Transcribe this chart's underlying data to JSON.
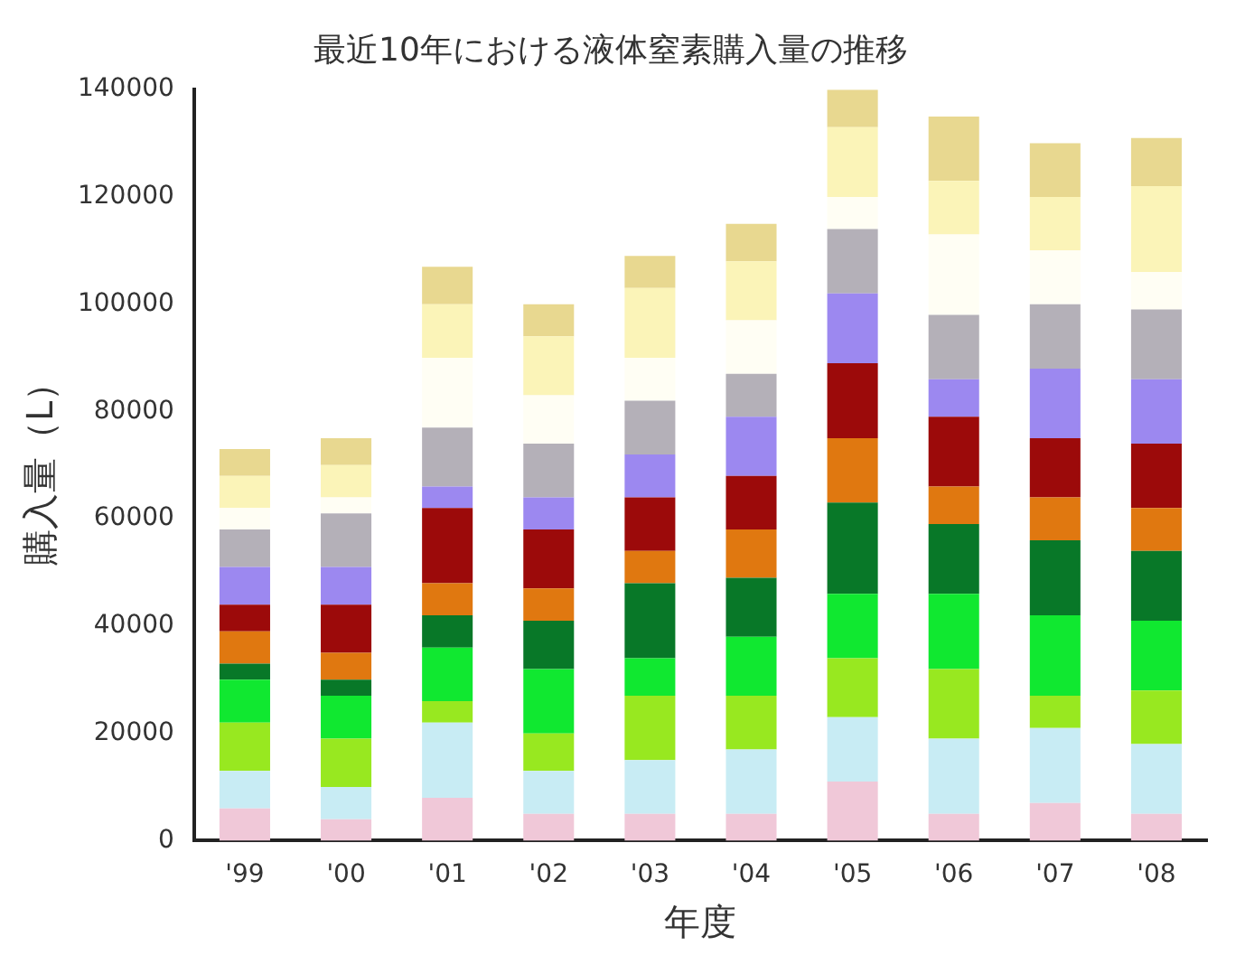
{
  "chart_data": {
    "type": "bar",
    "title": "最近10年における液体窒素購入量の推移",
    "xlabel": "年度",
    "ylabel": "購入量（L）",
    "categories": [
      "'99",
      "'00",
      "'01",
      "'02",
      "'03",
      "'04",
      "'05",
      "'06",
      "'07",
      "'08"
    ],
    "stacked": true,
    "ylim": [
      0,
      140000
    ],
    "yticks": [
      0,
      20000,
      40000,
      60000,
      80000,
      100000,
      120000,
      140000
    ],
    "grid": false,
    "legend": false,
    "series": [
      {
        "color": "#f0c8d8",
        "values": [
          6000,
          4000,
          8000,
          5000,
          5000,
          5000,
          11000,
          5000,
          7000,
          5000
        ]
      },
      {
        "color": "#c8ecf4",
        "values": [
          7000,
          6000,
          14000,
          8000,
          10000,
          12000,
          12000,
          14000,
          14000,
          13000
        ]
      },
      {
        "color": "#98e820",
        "values": [
          9000,
          9000,
          4000,
          7000,
          12000,
          10000,
          11000,
          13000,
          6000,
          10000
        ]
      },
      {
        "color": "#10e830",
        "values": [
          8000,
          8000,
          10000,
          12000,
          7000,
          11000,
          12000,
          14000,
          15000,
          13000
        ]
      },
      {
        "color": "#087828",
        "values": [
          3000,
          3000,
          6000,
          9000,
          14000,
          11000,
          17000,
          13000,
          14000,
          13000
        ]
      },
      {
        "color": "#e07810",
        "values": [
          6000,
          5000,
          6000,
          6000,
          6000,
          9000,
          12000,
          7000,
          8000,
          8000
        ]
      },
      {
        "color": "#9c0a0a",
        "values": [
          5000,
          9000,
          14000,
          11000,
          10000,
          10000,
          14000,
          13000,
          11000,
          12000
        ]
      },
      {
        "color": "#9c88f0",
        "values": [
          7000,
          7000,
          4000,
          6000,
          8000,
          11000,
          13000,
          7000,
          13000,
          12000
        ]
      },
      {
        "color": "#b4b0b8",
        "values": [
          7000,
          10000,
          11000,
          10000,
          10000,
          8000,
          12000,
          12000,
          12000,
          13000
        ]
      },
      {
        "color": "#fffef4",
        "values": [
          4000,
          3000,
          13000,
          9000,
          8000,
          10000,
          6000,
          15000,
          10000,
          7000
        ]
      },
      {
        "color": "#fbf4b8",
        "values": [
          6000,
          6000,
          10000,
          11000,
          13000,
          11000,
          13000,
          10000,
          10000,
          16000
        ]
      },
      {
        "color": "#e8d890",
        "values": [
          5000,
          5000,
          7000,
          6000,
          6000,
          7000,
          7000,
          12000,
          10000,
          9000
        ]
      }
    ]
  }
}
